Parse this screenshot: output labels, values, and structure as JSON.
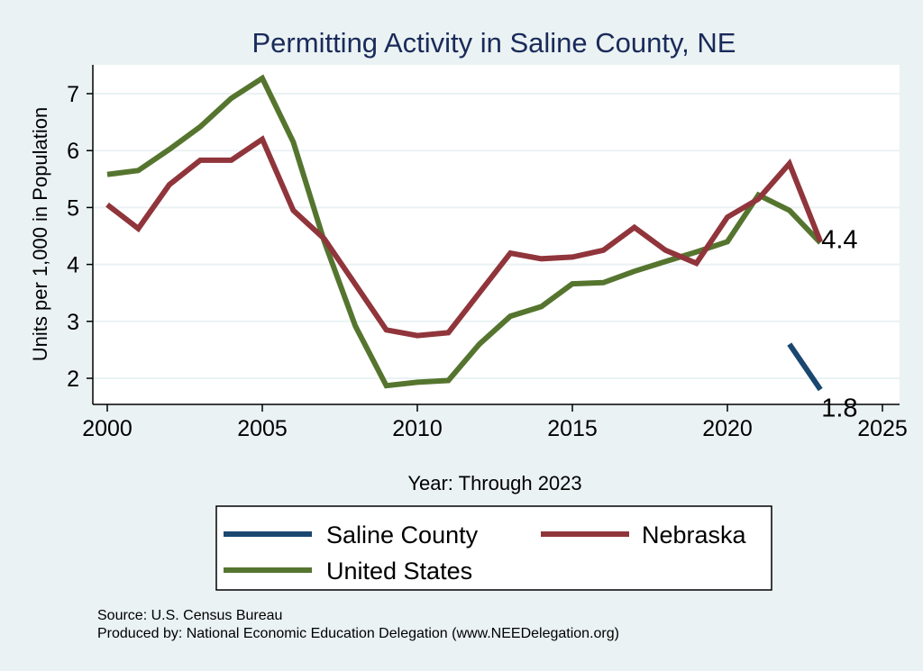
{
  "chart_data": {
    "type": "line",
    "title": "Permitting Activity in Saline County, NE",
    "xlabel": "Year: Through 2023",
    "ylabel": "Units per 1,000 in Population",
    "xlim": [
      2000,
      2025
    ],
    "ylim": [
      1.6,
      7.5
    ],
    "xticks": [
      "2000",
      "2005",
      "2010",
      "2015",
      "2020",
      "2025"
    ],
    "yticks": [
      "2",
      "3",
      "4",
      "5",
      "6",
      "7"
    ],
    "grid": true,
    "legend_position": "bottom",
    "series": [
      {
        "name": "Saline County",
        "color": "#1a476f",
        "x": [
          2022,
          2023
        ],
        "y": [
          2.6,
          1.8
        ],
        "end_label": "1.8"
      },
      {
        "name": "Nebraska",
        "color": "#90353b",
        "x": [
          2000,
          2001,
          2002,
          2003,
          2004,
          2005,
          2006,
          2007,
          2008,
          2009,
          2010,
          2011,
          2012,
          2013,
          2014,
          2015,
          2016,
          2017,
          2018,
          2019,
          2020,
          2021,
          2022,
          2023
        ],
        "y": [
          5.05,
          4.63,
          5.4,
          5.83,
          5.83,
          6.2,
          4.95,
          4.45,
          3.65,
          2.85,
          2.75,
          2.8,
          3.5,
          4.2,
          4.1,
          4.13,
          4.25,
          4.65,
          4.25,
          4.02,
          4.83,
          5.15,
          5.77,
          4.4
        ],
        "end_label": "4.4"
      },
      {
        "name": "United States",
        "color": "#55752f",
        "x": [
          2000,
          2001,
          2002,
          2003,
          2004,
          2005,
          2006,
          2007,
          2008,
          2009,
          2010,
          2011,
          2012,
          2013,
          2014,
          2015,
          2016,
          2017,
          2018,
          2019,
          2020,
          2021,
          2022,
          2023
        ],
        "y": [
          5.58,
          5.65,
          6.02,
          6.42,
          6.92,
          7.27,
          6.15,
          4.4,
          2.92,
          1.87,
          1.93,
          1.96,
          2.6,
          3.09,
          3.26,
          3.66,
          3.68,
          3.88,
          4.05,
          4.22,
          4.4,
          5.22,
          4.95,
          4.38
        ]
      }
    ],
    "notes": [
      "Source: U.S. Census Bureau",
      "Produced by: National Economic Education Delegation (www.NEEDelegation.org)"
    ]
  }
}
